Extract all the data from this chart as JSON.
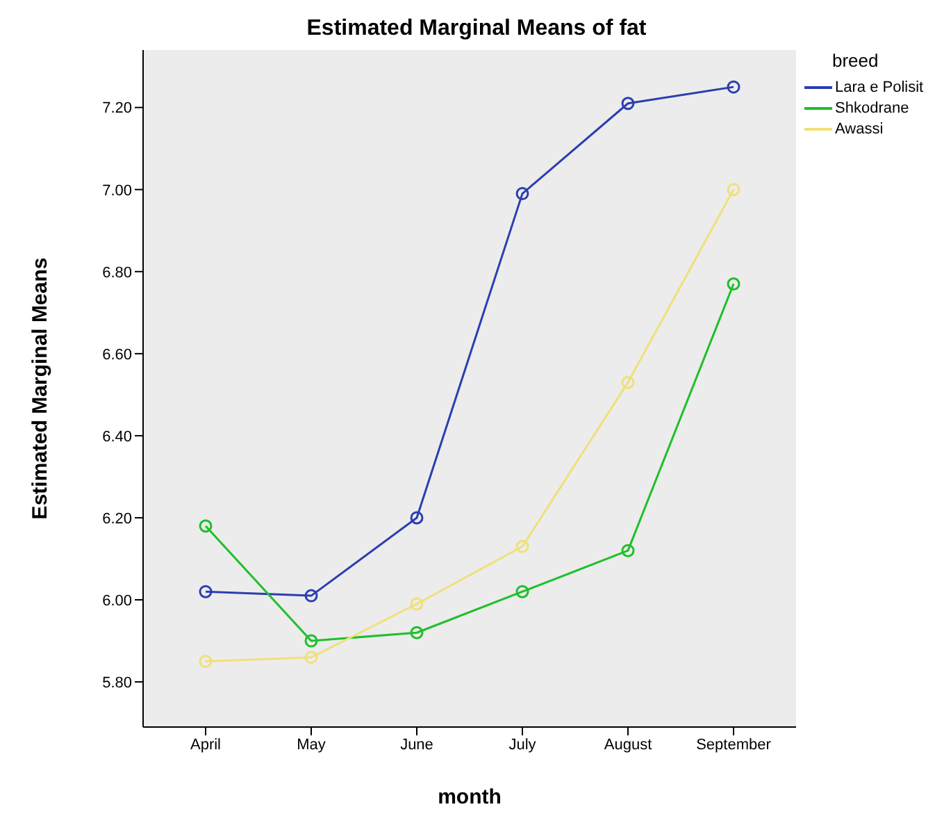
{
  "chart_data": {
    "type": "line",
    "title": "Estimated Marginal Means of fat",
    "xlabel": "month",
    "ylabel": "Estimated Marginal Means",
    "legend_title": "breed",
    "categories": [
      "April",
      "May",
      "June",
      "July",
      "August",
      "September"
    ],
    "series": [
      {
        "name": "Lara e Polisit",
        "color": "#2b3eb0",
        "values": [
          6.02,
          6.01,
          6.2,
          6.99,
          7.21,
          7.25
        ]
      },
      {
        "name": "Shkodrane",
        "color": "#1fbf2a",
        "values": [
          6.18,
          5.9,
          5.92,
          6.02,
          6.12,
          6.77
        ]
      },
      {
        "name": "Awassi",
        "color": "#f0e07a",
        "values": [
          5.85,
          5.86,
          5.99,
          6.13,
          6.53,
          7.0
        ]
      }
    ],
    "ylim": [
      5.69,
      7.34
    ],
    "yticks": [
      {
        "value": 5.8,
        "label": "5.80"
      },
      {
        "value": 6.0,
        "label": "6.00"
      },
      {
        "value": 6.2,
        "label": "6.20"
      },
      {
        "value": 6.4,
        "label": "6.40"
      },
      {
        "value": 6.6,
        "label": "6.60"
      },
      {
        "value": 6.8,
        "label": "6.80"
      },
      {
        "value": 7.0,
        "label": "7.00"
      },
      {
        "value": 7.2,
        "label": "7.20"
      }
    ],
    "grid": false,
    "legend": "top right",
    "marker": "circle",
    "line_style": "solid"
  }
}
